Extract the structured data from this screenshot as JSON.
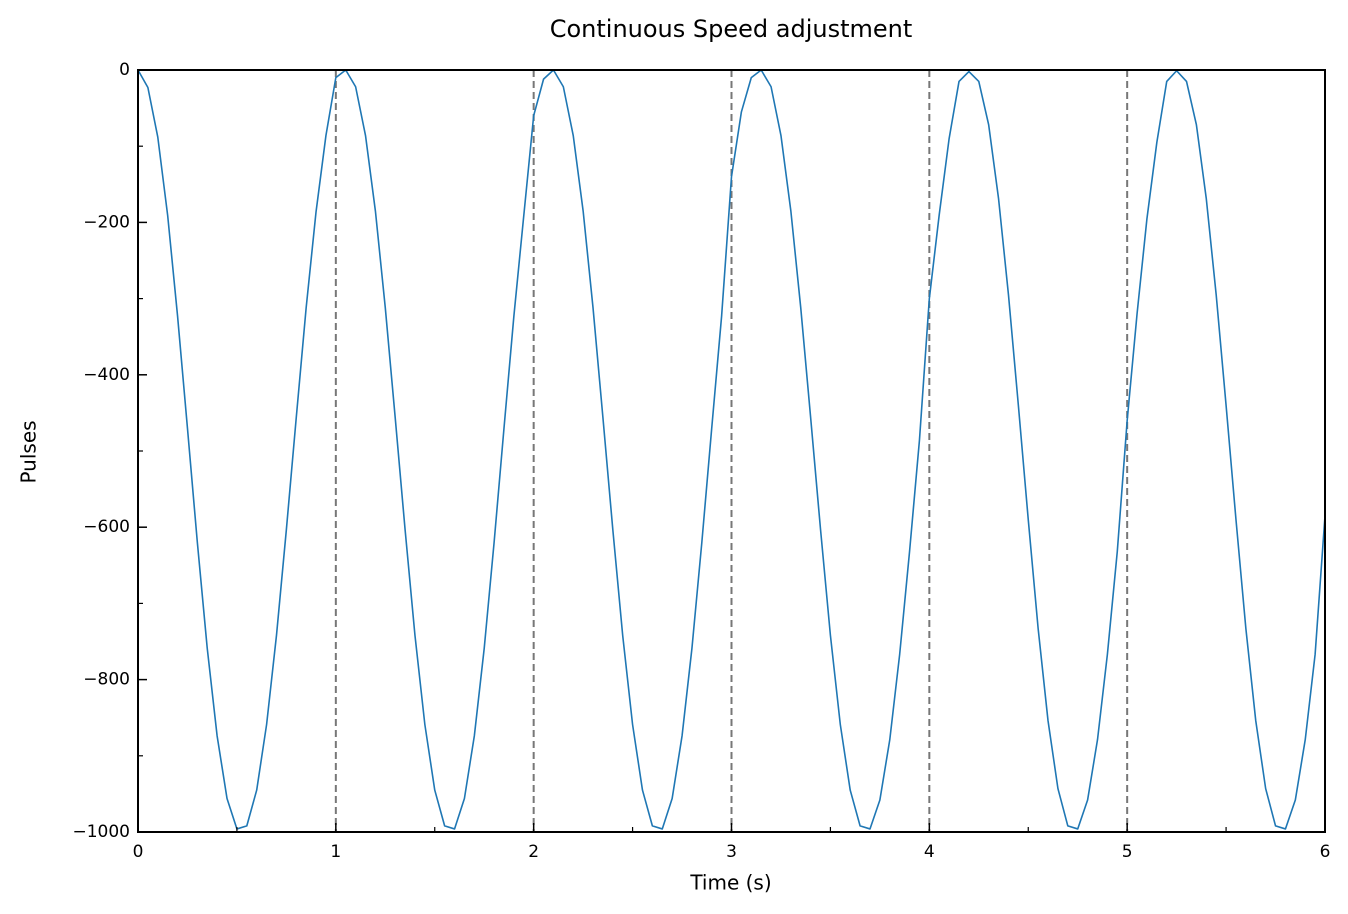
{
  "chart_data": {
    "type": "line",
    "title": "Continuous Speed adjustment",
    "xlabel": "Time (s)",
    "ylabel": "Pulses",
    "color": "#1f77b4",
    "x": [
      0,
      0.05,
      0.1,
      0.15,
      0.2,
      0.25,
      0.3,
      0.35,
      0.4,
      0.45,
      0.5,
      0.55,
      0.6,
      0.65,
      0.7,
      0.75,
      0.8,
      0.85,
      0.9,
      0.95,
      1,
      1.05,
      1.1,
      1.15,
      1.2,
      1.25,
      1.3,
      1.35,
      1.4,
      1.45,
      1.5,
      1.55,
      1.6,
      1.65,
      1.7,
      1.75,
      1.8,
      1.85,
      1.9,
      1.95,
      2,
      2.05,
      2.1,
      2.15,
      2.2,
      2.25,
      2.3,
      2.35,
      2.4,
      2.45,
      2.5,
      2.55,
      2.6,
      2.65,
      2.7,
      2.75,
      2.8,
      2.85,
      2.9,
      2.95,
      3,
      3.05,
      3.1,
      3.15,
      3.2,
      3.25,
      3.3,
      3.35,
      3.4,
      3.45,
      3.5,
      3.55,
      3.6,
      3.65,
      3.7,
      3.75,
      3.8,
      3.85,
      3.9,
      3.95,
      4,
      4.05,
      4.1,
      4.15,
      4.2,
      4.25,
      4.3,
      4.35,
      4.4,
      4.45,
      4.5,
      4.55,
      4.6,
      4.65,
      4.7,
      4.75,
      4.8,
      4.85,
      4.9,
      4.95,
      5,
      5.05,
      5.1,
      5.15,
      5.2,
      5.25,
      5.3,
      5.35,
      5.4,
      5.45,
      5.5,
      5.55,
      5.6,
      5.65,
      5.7,
      5.75,
      5.8,
      5.85,
      5.9,
      5.95,
      6
    ],
    "values": [
      0,
      -23,
      -88,
      -191,
      -323,
      -470,
      -620,
      -759,
      -874,
      -956,
      -996,
      -992,
      -945,
      -859,
      -742,
      -603,
      -456,
      -312,
      -186,
      -86,
      -10,
      0,
      -22,
      -86,
      -185,
      -312,
      -456,
      -603,
      -742,
      -859,
      -945,
      -992,
      -996,
      -956,
      -874,
      -759,
      -620,
      -470,
      -323,
      -191,
      -60,
      -12,
      0,
      -22,
      -86,
      -185,
      -312,
      -456,
      -603,
      -742,
      -859,
      -945,
      -992,
      -996,
      -956,
      -874,
      -759,
      -620,
      -470,
      -323,
      -140,
      -55,
      -10,
      0,
      -22,
      -86,
      -185,
      -312,
      -456,
      -603,
      -742,
      -859,
      -945,
      -992,
      -996,
      -958,
      -879,
      -767,
      -632,
      -486,
      -300,
      -190,
      -90,
      -15,
      -2,
      -15,
      -72,
      -169,
      -295,
      -440,
      -590,
      -733,
      -854,
      -943,
      -992,
      -996,
      -958,
      -879,
      -767,
      -632,
      -460,
      -320,
      -195,
      -95,
      -15,
      -1,
      -15,
      -72,
      -169,
      -295,
      -440,
      -590,
      -733,
      -854,
      -943,
      -992,
      -996,
      -958,
      -879,
      -767,
      -585
    ],
    "vlines": [
      1,
      2,
      3,
      4,
      5
    ],
    "vline_color": "#777777",
    "xlim": [
      0,
      6
    ],
    "ylim": [
      -1000,
      0
    ],
    "xticks": [
      0,
      1,
      2,
      3,
      4,
      5,
      6
    ],
    "yticks": [
      {
        "value": -1000,
        "label": "−1000"
      },
      {
        "value": -800,
        "label": "−800"
      },
      {
        "value": -600,
        "label": "−600"
      },
      {
        "value": -400,
        "label": "−400"
      },
      {
        "value": -200,
        "label": "−200"
      },
      0
    ],
    "xminor_ticks": [
      0.5,
      1.5,
      2.5,
      3.5,
      4.5,
      5.5
    ],
    "yminor_ticks": [
      -900,
      -700,
      -500,
      -300,
      -100
    ]
  }
}
